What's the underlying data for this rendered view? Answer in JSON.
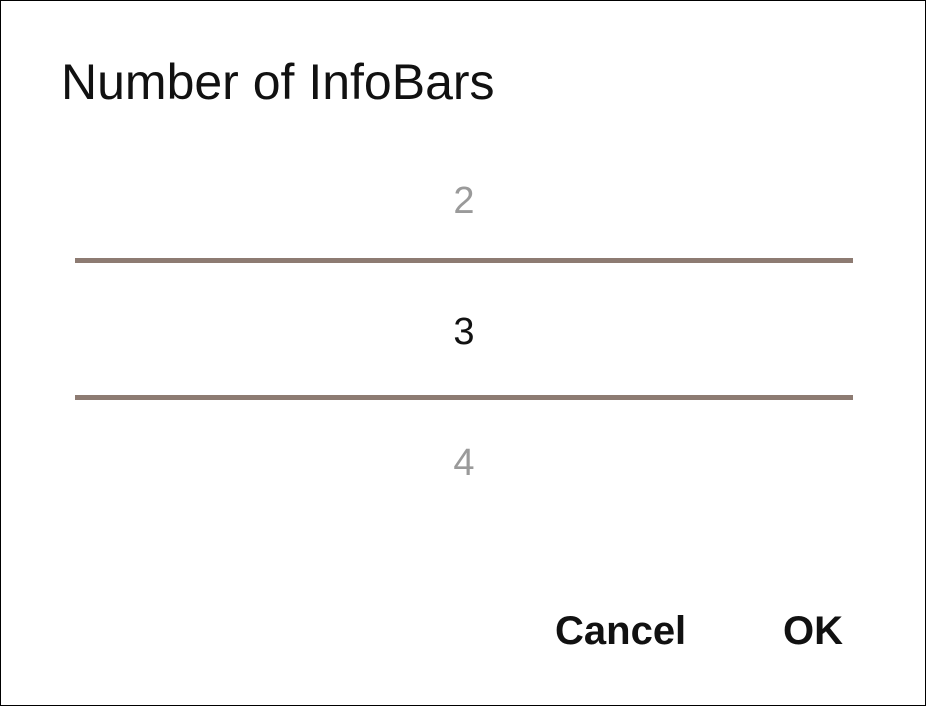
{
  "dialog": {
    "title": "Number of InfoBars",
    "picker": {
      "previous_value": "2",
      "selected_value": "3",
      "next_value": "4"
    },
    "buttons": {
      "cancel_label": "Cancel",
      "ok_label": "OK"
    }
  },
  "colors": {
    "divider": "#8d7b72",
    "text_primary": "#111111",
    "text_dimmed": "#9a9a9a"
  }
}
